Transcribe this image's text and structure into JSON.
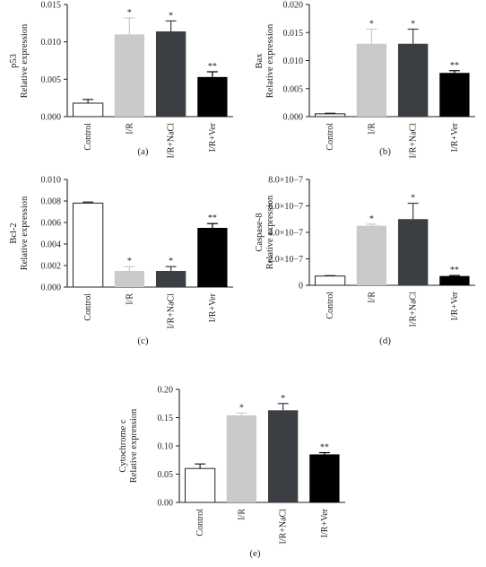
{
  "categories": [
    "Control",
    "I/R",
    "I/R+NaCl",
    "I/R+Ver"
  ],
  "colors": [
    "#ffffff",
    "#c8cacb",
    "#3b3e42",
    "#000000"
  ],
  "chart_data": [
    {
      "type": "bar",
      "panel_label": "(a)",
      "ylabel_lines": [
        "p53",
        "Relative expression"
      ],
      "categories": [
        "Control",
        "I/R",
        "I/R+NaCl",
        "I/R+Ver"
      ],
      "values": [
        0.0018,
        0.011,
        0.0114,
        0.0053
      ],
      "errors": [
        0.0005,
        0.0022,
        0.0014,
        0.0007
      ],
      "significance": [
        "",
        "*",
        "*",
        "**"
      ],
      "ylim": [
        0,
        0.015
      ],
      "yticks": [
        0,
        0.005,
        0.01,
        0.015
      ],
      "ytick_labels": [
        "0.000",
        "0.005",
        "0.010",
        "0.015"
      ]
    },
    {
      "type": "bar",
      "panel_label": "(b)",
      "ylabel_lines": [
        "Bax",
        "Relative expression"
      ],
      "categories": [
        "Control",
        "I/R",
        "I/R+NaCl",
        "I/R+Ver"
      ],
      "values": [
        0.0005,
        0.013,
        0.013,
        0.0078
      ],
      "errors": [
        0.0001,
        0.0026,
        0.0026,
        0.0004
      ],
      "significance": [
        "",
        "*",
        "*",
        "**"
      ],
      "ylim": [
        0,
        0.02
      ],
      "yticks": [
        0,
        0.005,
        0.01,
        0.015,
        0.02
      ],
      "ytick_labels": [
        "0.000",
        "0.005",
        "0.010",
        "0.015",
        "0.020"
      ]
    },
    {
      "type": "bar",
      "panel_label": "(c)",
      "ylabel_lines": [
        "Bcl-2",
        "Relative expression"
      ],
      "categories": [
        "Control",
        "I/R",
        "I/R+NaCl",
        "I/R+Ver"
      ],
      "values": [
        0.0078,
        0.0015,
        0.0015,
        0.0055
      ],
      "errors": [
        0.0001,
        0.0004,
        0.0004,
        0.0004
      ],
      "significance": [
        "",
        "*",
        "*",
        "**"
      ],
      "ylim": [
        0,
        0.01
      ],
      "yticks": [
        0,
        0.002,
        0.004,
        0.006,
        0.008,
        0.01
      ],
      "ytick_labels": [
        "0.000",
        "0.002",
        "0.004",
        "0.006",
        "0.008",
        "0.010"
      ]
    },
    {
      "type": "bar",
      "panel_label": "(d)",
      "ylabel_lines": [
        "Caspase-8",
        "Relative expression"
      ],
      "categories": [
        "Control",
        "I/R",
        "I/R+NaCl",
        "I/R+Ver"
      ],
      "values": [
        7e-08,
        4.5e-07,
        5e-07,
        7e-08
      ],
      "errors": [
        3e-09,
        1.2e-08,
        1.2e-07,
        4e-09
      ],
      "significance": [
        "",
        "*",
        "*",
        "**"
      ],
      "ylim": [
        0,
        8e-07
      ],
      "yticks": [
        0,
        2e-07,
        4e-07,
        6e-07,
        8e-07
      ],
      "ytick_labels": [
        "0",
        "2.0×10−7",
        "4.0×10−7",
        "6.0×10−7",
        "8.0×10−7"
      ]
    },
    {
      "type": "bar",
      "panel_label": "(e)",
      "ylabel_lines": [
        "Cytochrome c",
        "Relative expression"
      ],
      "categories": [
        "Control",
        "I/R",
        "I/R+NaCl",
        "I/R+Ver"
      ],
      "values": [
        0.06,
        0.154,
        0.163,
        0.085
      ],
      "errors": [
        0.008,
        0.004,
        0.012,
        0.003
      ],
      "significance": [
        "",
        "*",
        "*",
        "**"
      ],
      "ylim": [
        0,
        0.2
      ],
      "yticks": [
        0,
        0.05,
        0.1,
        0.15,
        0.2
      ],
      "ytick_labels": [
        "0.00",
        "0.05",
        "0.10",
        "0.15",
        "0.20"
      ]
    }
  ]
}
